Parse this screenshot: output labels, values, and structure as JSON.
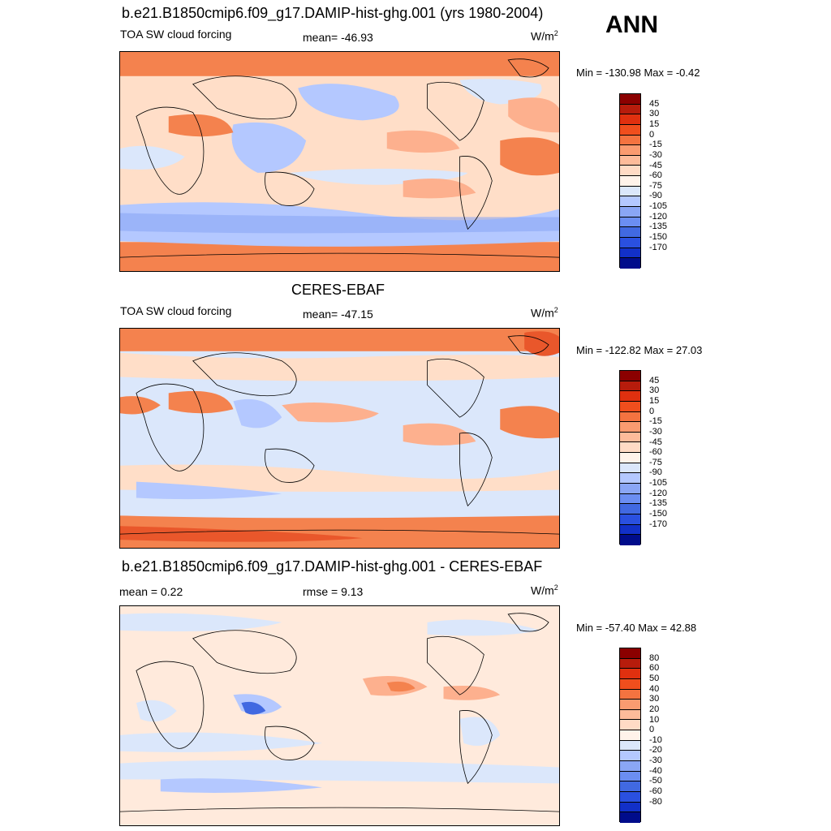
{
  "season": "ANN",
  "colors": {
    "ocean_blue_dark": "#b4c8ff",
    "ocean_blue_light": "#dbe7fb",
    "peach": "#ffdec8",
    "salmon": "#fdb08e",
    "orange": "#f4824e",
    "red": "#e9572b",
    "blue_mid": "#8aa6f5",
    "blue_deep": "#4169e1",
    "land_line": "#000000"
  },
  "panels": [
    {
      "title": "b.e21.B1850cmip6.f09_g17.DAMIP-hist-ghg.001 (yrs 1980-2004)",
      "left_label": "TOA SW cloud forcing",
      "center_label": "mean= -46.93",
      "units": "W/m",
      "units_sup": "2",
      "minmax": "Min = -130.98 Max =  -0.42",
      "colorbar": {
        "colors": [
          "#8b0000",
          "#b71c0c",
          "#e0300f",
          "#f04e1d",
          "#f47340",
          "#fa9b70",
          "#fdbb9a",
          "#ffdbc5",
          "#fff3ea",
          "#dbe7fb",
          "#b4c8ff",
          "#8aa6f5",
          "#6b8ef2",
          "#4169e1",
          "#2a50e0",
          "#1230c8",
          "#000c8b"
        ],
        "labels": [
          "45",
          "30",
          "15",
          "0",
          "-15",
          "-30",
          "-45",
          "-60",
          "-75",
          "-90",
          "-105",
          "-120",
          "-135",
          "-150",
          "-170"
        ]
      }
    },
    {
      "title": "CERES-EBAF",
      "left_label": "TOA SW cloud forcing",
      "center_label": "mean= -47.15",
      "units": "W/m",
      "units_sup": "2",
      "minmax": "Min = -122.82 Max =  27.03",
      "colorbar": {
        "colors": [
          "#8b0000",
          "#b71c0c",
          "#e0300f",
          "#f04e1d",
          "#f47340",
          "#fa9b70",
          "#fdbb9a",
          "#ffdbc5",
          "#fff3ea",
          "#dbe7fb",
          "#b4c8ff",
          "#8aa6f5",
          "#6b8ef2",
          "#4169e1",
          "#2a50e0",
          "#1230c8",
          "#000c8b"
        ],
        "labels": [
          "45",
          "30",
          "15",
          "0",
          "-15",
          "-30",
          "-45",
          "-60",
          "-75",
          "-90",
          "-105",
          "-120",
          "-135",
          "-150",
          "-170"
        ]
      }
    },
    {
      "title": "b.e21.B1850cmip6.f09_g17.DAMIP-hist-ghg.001 - CERES-EBAF",
      "left_label": "mean =   0.22",
      "center_label": "rmse =   9.13",
      "units": "W/m",
      "units_sup": "2",
      "minmax": "Min = -57.40 Max =  42.88",
      "colorbar": {
        "colors": [
          "#8b0000",
          "#b71c0c",
          "#e0300f",
          "#f04e1d",
          "#f47340",
          "#fa9b70",
          "#fdbb9a",
          "#ffdbc5",
          "#fff3ea",
          "#dbe7fb",
          "#b4c8ff",
          "#8aa6f5",
          "#6b8ef2",
          "#4169e1",
          "#2a50e0",
          "#1230c8",
          "#000c8b"
        ],
        "labels": [
          "80",
          "60",
          "50",
          "40",
          "30",
          "20",
          "10",
          "0",
          "-10",
          "-20",
          "-30",
          "-40",
          "-50",
          "-60",
          "-80"
        ]
      }
    }
  ]
}
